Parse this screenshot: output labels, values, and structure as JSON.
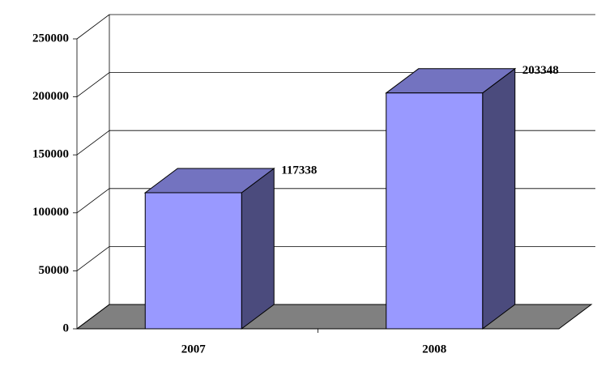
{
  "chart_data": {
    "type": "bar3d",
    "categories": [
      "2007",
      "2008"
    ],
    "values": [
      117338,
      203348
    ],
    "color": "#9999ff",
    "ylim": [
      0,
      250000
    ],
    "yticks": [
      0,
      50000,
      100000,
      150000,
      200000,
      250000
    ],
    "grid": true
  }
}
